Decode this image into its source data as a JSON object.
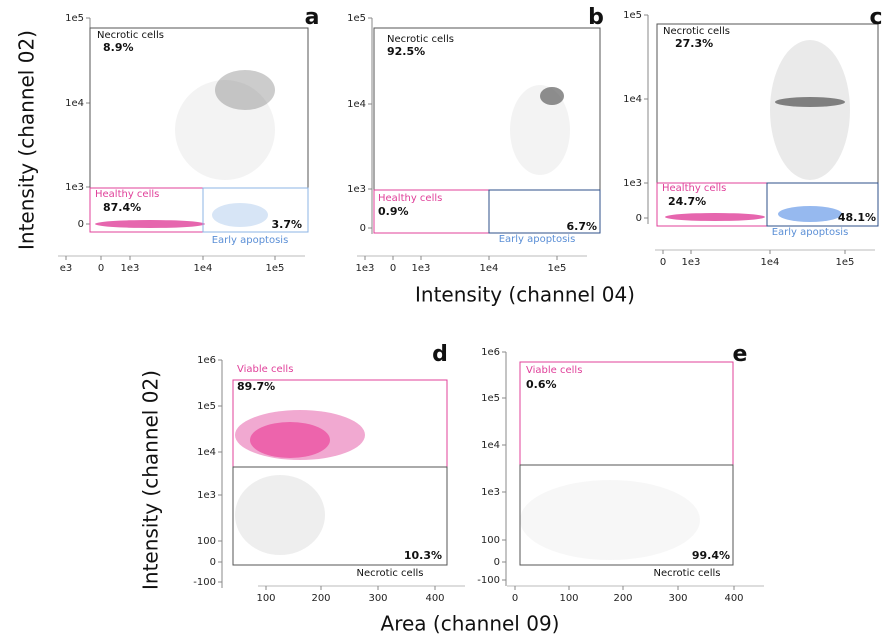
{
  "axis_titles": {
    "top_y": "Intensity (channel 02)",
    "top_x": "Intensity (channel 04)",
    "bottom_y": "Intensity (channel 02)",
    "bottom_x": "Area (channel 09)"
  },
  "panels": [
    {
      "letter": "a",
      "yticks": [
        "1e5",
        "1e4",
        "1e3",
        "0"
      ],
      "xticks": [
        "e3",
        "0",
        "1e3",
        "1e4",
        "1e5"
      ],
      "gates": [
        {
          "label": "Necrotic cells",
          "percent": "8.9%"
        },
        {
          "label": "Healthy cells",
          "percent": "87.4%"
        },
        {
          "label": "Early apoptosis",
          "percent": "3.7%"
        }
      ]
    },
    {
      "letter": "b",
      "yticks": [
        "1e5",
        "1e4",
        "1e3",
        "0"
      ],
      "xticks": [
        "1e3",
        "0",
        "1e3",
        "1e4",
        "1e5"
      ],
      "gates": [
        {
          "label": "Necrotic cells",
          "percent": "92.5%"
        },
        {
          "label": "Healthy cells",
          "percent": "0.9%"
        },
        {
          "label": "Early apoptosis",
          "percent": "6.7%"
        }
      ]
    },
    {
      "letter": "c",
      "yticks": [
        "1e5",
        "1e4",
        "1e3",
        "0"
      ],
      "xticks": [
        "0",
        "1e3",
        "1e4",
        "1e5"
      ],
      "gates": [
        {
          "label": "Necrotic cells",
          "percent": "27.3%"
        },
        {
          "label": "Healthy cells",
          "percent": "24.7%"
        },
        {
          "label": "Early apoptosis",
          "percent": "48.1%"
        }
      ]
    },
    {
      "letter": "d",
      "yticks": [
        "1e6",
        "1e5",
        "1e4",
        "1e3",
        "100",
        "0",
        "-100"
      ],
      "xticks": [
        "100",
        "200",
        "300",
        "400"
      ],
      "gates": [
        {
          "label": "Viable cells",
          "percent": "89.7%"
        },
        {
          "label": "Necrotic cells",
          "percent": "10.3%"
        }
      ]
    },
    {
      "letter": "e",
      "yticks": [
        "1e6",
        "1e5",
        "1e4",
        "1e3",
        "100",
        "0",
        "-100"
      ],
      "xticks": [
        "0",
        "100",
        "200",
        "300",
        "400"
      ],
      "gates": [
        {
          "label": "Viable cells",
          "percent": "0.6%"
        },
        {
          "label": "Necrotic cells",
          "percent": "99.4%"
        }
      ]
    }
  ]
}
